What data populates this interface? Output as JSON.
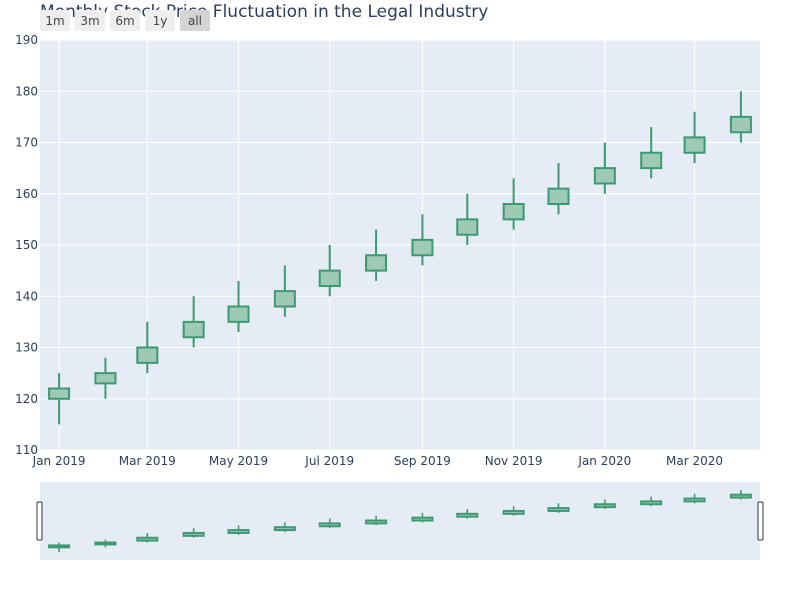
{
  "title": "Monthly Stock Price Fluctuation in the Legal Industry",
  "range_selector": {
    "buttons": [
      "1m",
      "3m",
      "6m",
      "1y",
      "all"
    ],
    "active": "all"
  },
  "colors": {
    "increasing_line": "#3d9970",
    "increasing_fill": "#9ec9b4",
    "plot_bg": "#e5ecf6",
    "grid": "#ffffff",
    "text": "#2a3f5f",
    "slider_handle": "#ffffff",
    "slider_handle_border": "#333333"
  },
  "chart_data": {
    "type": "candlestick",
    "title": "Monthly Stock Price Fluctuation in the Legal Industry",
    "x": [
      "2019-01-01",
      "2019-02-01",
      "2019-03-01",
      "2019-04-01",
      "2019-05-01",
      "2019-06-01",
      "2019-07-01",
      "2019-08-01",
      "2019-09-01",
      "2019-10-01",
      "2019-11-01",
      "2019-12-01",
      "2020-01-01",
      "2020-02-01",
      "2020-03-01",
      "2020-04-01"
    ],
    "open": [
      120,
      123,
      127,
      132,
      135,
      138,
      142,
      145,
      148,
      152,
      155,
      158,
      162,
      165,
      168,
      172
    ],
    "high": [
      125,
      128,
      135,
      140,
      143,
      146,
      150,
      153,
      156,
      160,
      163,
      166,
      170,
      173,
      176,
      180
    ],
    "low": [
      115,
      120,
      125,
      130,
      133,
      136,
      140,
      143,
      146,
      150,
      153,
      156,
      160,
      163,
      166,
      170
    ],
    "close": [
      122,
      125,
      130,
      135,
      138,
      141,
      145,
      148,
      151,
      155,
      158,
      161,
      165,
      168,
      171,
      175
    ],
    "ylim": [
      110,
      190
    ],
    "y_ticks": [
      110,
      120,
      130,
      140,
      150,
      160,
      170,
      180,
      190
    ],
    "x_ticks": [
      {
        "date": "2019-01-01",
        "label": "Jan 2019"
      },
      {
        "date": "2019-03-01",
        "label": "Mar 2019"
      },
      {
        "date": "2019-05-01",
        "label": "May 2019"
      },
      {
        "date": "2019-07-01",
        "label": "Jul 2019"
      },
      {
        "date": "2019-09-01",
        "label": "Sep 2019"
      },
      {
        "date": "2019-11-01",
        "label": "Nov 2019"
      },
      {
        "date": "2020-01-01",
        "label": "Jan 2020"
      },
      {
        "date": "2020-03-01",
        "label": "Mar 2020"
      }
    ],
    "xlim": [
      "2019-01-01",
      "2020-04-01"
    ],
    "xlabel": "",
    "ylabel": "",
    "grid": true,
    "rangeslider": true
  }
}
